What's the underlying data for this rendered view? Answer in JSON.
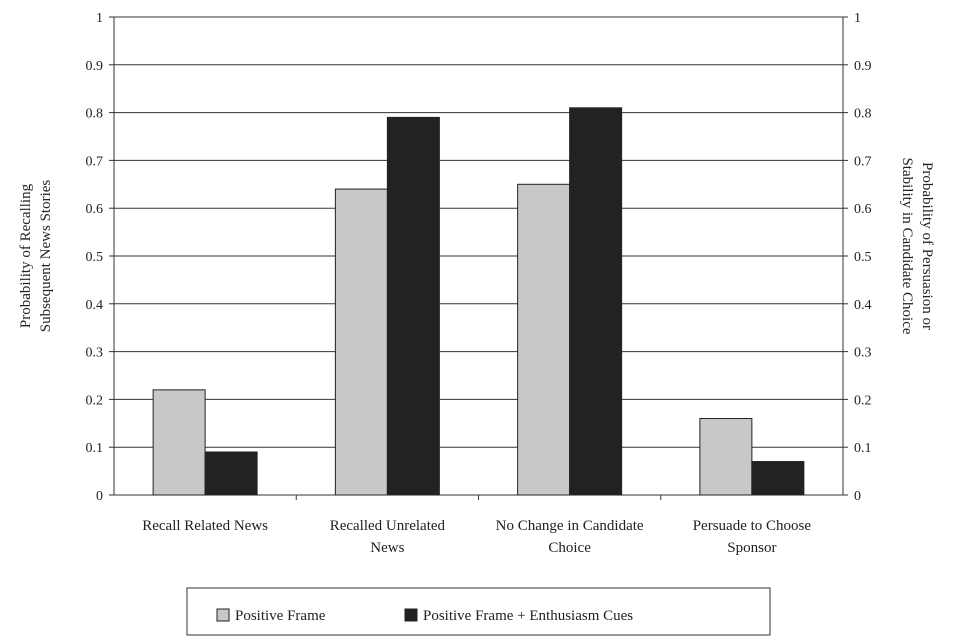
{
  "chart_data": {
    "type": "bar",
    "categories": [
      [
        "Recall Related News"
      ],
      [
        "Recalled Unrelated",
        "News"
      ],
      [
        "No Change in Candidate",
        "Choice"
      ],
      [
        "Persuade to Choose",
        "Sponsor"
      ]
    ],
    "series": [
      {
        "name": "Positive Frame",
        "values": [
          0.22,
          0.64,
          0.65,
          0.16
        ],
        "color": "#c8c8c8"
      },
      {
        "name": "Positive Frame + Enthusiasm Cues",
        "values": [
          0.09,
          0.79,
          0.81,
          0.07
        ],
        "color": "#222222"
      }
    ],
    "ylim": [
      0,
      1
    ],
    "yticks": [
      "0",
      "0.1",
      "0.2",
      "0.3",
      "0.4",
      "0.5",
      "0.6",
      "0.7",
      "0.8",
      "0.9",
      "1"
    ],
    "ylabel_left": [
      "Probability of Recalling",
      "Subsequent News Stories"
    ],
    "ylabel_right": [
      "Probability of Persuasion or",
      "Stability in Candidate Choice"
    ],
    "grid": true,
    "legend_position": "bottom"
  }
}
